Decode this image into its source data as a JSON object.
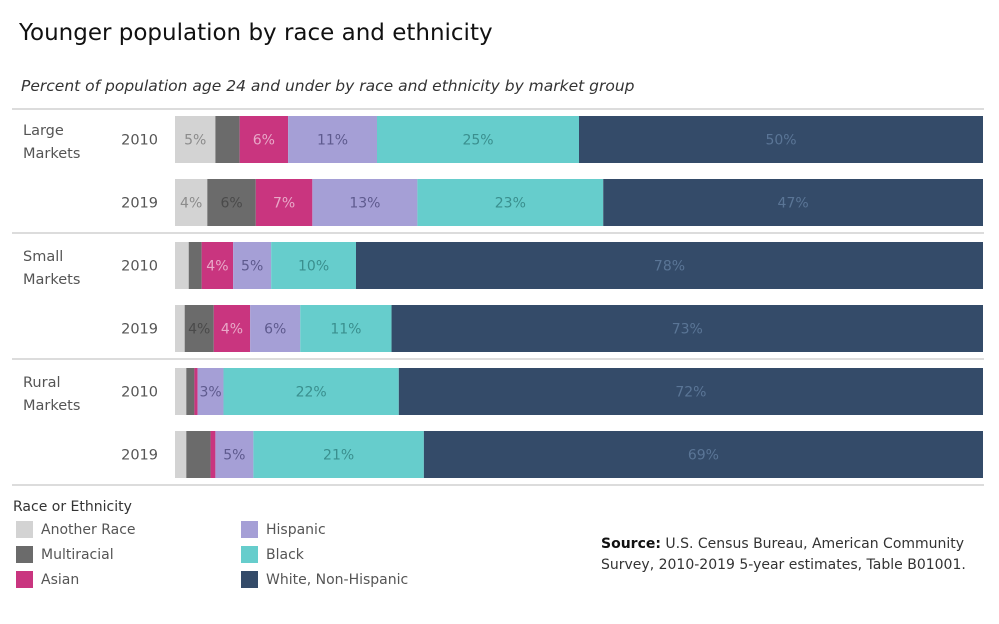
{
  "header": {
    "title": "Younger population by race and ethnicity",
    "subtitle": "Percent of population age 24 and under by race and ethnicity by market group"
  },
  "chart_data": {
    "type": "bar",
    "orientation": "horizontal",
    "stacked": true,
    "groups": [
      {
        "name": "Large\nMarkets",
        "rows": [
          {
            "year": "2010",
            "values": [
              5,
              3,
              6,
              11,
              25,
              50
            ],
            "labels": [
              "5%",
              "",
              "6%",
              "11%",
              "25%",
              "50%"
            ]
          },
          {
            "year": "2019",
            "values": [
              4,
              6,
              7,
              13,
              23,
              47
            ],
            "labels": [
              "4%",
              "6%",
              "7%",
              "13%",
              "23%",
              "47%"
            ]
          }
        ]
      },
      {
        "name": "Small\nMarkets",
        "rows": [
          {
            "year": "2010",
            "values": [
              1.7,
              1.6,
              3.9,
              4.7,
              10.5,
              77.6
            ],
            "labels": [
              "",
              "",
              "4%",
              "5%",
              "10%",
              "78%"
            ]
          },
          {
            "year": "2019",
            "values": [
              1.2,
              3.6,
              4.5,
              6.2,
              11.3,
              73.2
            ],
            "labels": [
              "",
              "4%",
              "4%",
              "6%",
              "11%",
              "73%"
            ]
          }
        ]
      },
      {
        "name": "Rural\nMarkets",
        "rows": [
          {
            "year": "2010",
            "values": [
              1.4,
              1.0,
              0.4,
              3.2,
              21.7,
              72.3
            ],
            "labels": [
              "",
              "",
              "",
              "3%",
              "22%",
              "72%"
            ]
          },
          {
            "year": "2019",
            "values": [
              1.4,
              3.0,
              0.6,
              4.7,
              21.1,
              69.2
            ],
            "labels": [
              "",
              "",
              "",
              "5%",
              "21%",
              "69%"
            ]
          }
        ]
      }
    ],
    "series": [
      {
        "name": "Another Race",
        "color": "#d3d3d3",
        "label_color": "#8c8c8c"
      },
      {
        "name": "Multiracial",
        "color": "#6b6b6b",
        "label_color": "#4a4a4a"
      },
      {
        "name": "Asian",
        "color": "#c9357f",
        "label_color": "#e8a8c8"
      },
      {
        "name": "Hispanic",
        "color": "#a59fd6",
        "label_color": "#5e5a8e"
      },
      {
        "name": "Black",
        "color": "#66cdcc",
        "label_color": "#3a8f8e"
      },
      {
        "name": "White, Non-Hispanic",
        "color": "#344b69",
        "label_color": "#5a7596"
      }
    ],
    "xlim": [
      0,
      100
    ],
    "legend_title": "Race or Ethnicity",
    "legend_position": "bottom-left"
  },
  "source": {
    "label": "Source:",
    "text": " U.S. Census Bureau, American Community Survey, 2010-2019 5-year estimates, Table B01001."
  }
}
